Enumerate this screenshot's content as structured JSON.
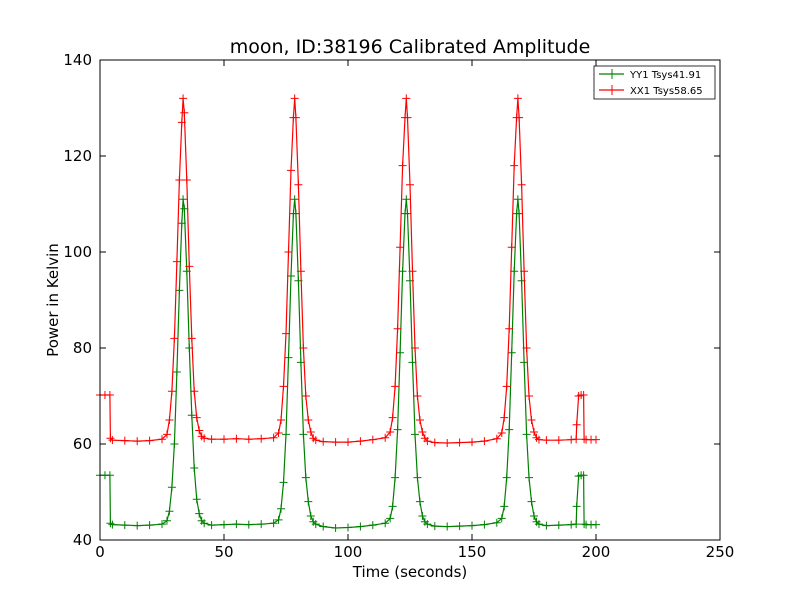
{
  "chart_data": {
    "type": "line",
    "title": "moon, ID:38196 Calibrated Amplitude",
    "xlabel": "Time (seconds)",
    "ylabel": "Power in Kelvin",
    "xlim": [
      0,
      250
    ],
    "ylim": [
      40,
      140
    ],
    "xticks": [
      0,
      50,
      100,
      150,
      200,
      250
    ],
    "yticks": [
      40,
      60,
      80,
      100,
      120,
      140
    ],
    "grid": false,
    "legend_position": "top-right",
    "marker": "+",
    "series": [
      {
        "name": "YY1 Tsys41.91",
        "color": "#008000",
        "x": [
          0,
          2,
          4,
          4.2,
          5,
          10,
          15,
          20,
          25,
          27,
          28,
          29,
          30,
          31,
          32,
          33,
          33.5,
          34,
          35,
          36,
          37,
          38,
          39,
          40,
          41,
          42,
          45,
          50,
          55,
          60,
          65,
          70,
          72,
          73,
          74,
          75,
          76,
          77,
          78,
          78.5,
          79,
          80,
          81,
          82,
          83,
          84,
          85,
          86,
          87,
          90,
          95,
          100,
          105,
          110,
          115,
          117,
          118,
          119,
          120,
          121,
          122,
          123,
          123.5,
          124,
          125,
          126,
          127,
          128,
          129,
          130,
          131,
          132,
          135,
          140,
          145,
          150,
          155,
          160,
          162,
          163,
          164,
          165,
          166,
          167,
          168,
          168.5,
          169,
          170,
          171,
          172,
          173,
          174,
          175,
          176,
          177,
          180,
          185,
          190,
          192,
          192.2,
          193,
          194,
          195,
          195.2,
          196,
          198,
          200
        ],
        "y": [
          53.5,
          53.5,
          53.5,
          43.5,
          43.2,
          43.1,
          43.0,
          43.1,
          43.3,
          44.0,
          46.0,
          51.0,
          60.0,
          75.0,
          92.0,
          106.0,
          111.0,
          109.0,
          96.0,
          80.0,
          66.0,
          55.0,
          48.5,
          45.5,
          44.0,
          43.5,
          43.1,
          43.2,
          43.3,
          43.2,
          43.3,
          43.5,
          44.2,
          46.5,
          52.0,
          62.0,
          78.0,
          95.0,
          108.0,
          111.0,
          108.0,
          94.0,
          77.0,
          62.0,
          53.0,
          48.0,
          45.0,
          43.8,
          43.3,
          42.8,
          42.5,
          42.6,
          42.8,
          43.1,
          43.5,
          44.5,
          47.0,
          53.0,
          63.0,
          79.0,
          96.0,
          108.0,
          111.0,
          108.0,
          94.0,
          77.0,
          62.0,
          53.0,
          48.0,
          45.0,
          43.8,
          43.3,
          42.9,
          42.8,
          42.9,
          43.0,
          43.2,
          43.6,
          44.5,
          47.0,
          53.0,
          63.0,
          79.0,
          96.0,
          108.0,
          111.0,
          108.0,
          94.0,
          77.0,
          62.0,
          53.0,
          48.0,
          45.0,
          43.8,
          43.3,
          43.0,
          43.1,
          43.2,
          43.3,
          47.0,
          53.3,
          53.5,
          53.5,
          43.3,
          43.2,
          43.2,
          43.2
        ]
      },
      {
        "name": "XX1 Tsys58.65",
        "color": "#ff0000",
        "x": [
          0,
          2,
          4,
          4.2,
          5,
          10,
          15,
          20,
          25,
          27,
          28,
          29,
          30,
          31,
          32,
          33,
          33.5,
          34,
          35,
          36,
          37,
          38,
          39,
          40,
          41,
          42,
          45,
          50,
          55,
          60,
          65,
          70,
          72,
          73,
          74,
          75,
          76,
          77,
          78,
          78.5,
          79,
          80,
          81,
          82,
          83,
          84,
          85,
          86,
          87,
          90,
          95,
          100,
          105,
          110,
          115,
          117,
          118,
          119,
          120,
          121,
          122,
          123,
          123.5,
          124,
          125,
          126,
          127,
          128,
          129,
          130,
          131,
          132,
          135,
          140,
          145,
          150,
          155,
          160,
          162,
          163,
          164,
          165,
          166,
          167,
          168,
          168.5,
          169,
          170,
          171,
          172,
          173,
          174,
          175,
          176,
          177,
          180,
          185,
          190,
          192,
          192.2,
          193,
          194,
          195,
          195.2,
          196,
          198,
          200
        ],
        "y": [
          70.2,
          70.2,
          70.2,
          61.2,
          60.8,
          60.7,
          60.6,
          60.7,
          61.0,
          62.0,
          65.0,
          71.0,
          82.0,
          98.0,
          115.0,
          127.0,
          132.0,
          129.0,
          115.0,
          97.0,
          82.0,
          71.0,
          65.5,
          62.8,
          61.6,
          61.2,
          61.0,
          61.0,
          61.1,
          61.0,
          61.1,
          61.3,
          62.3,
          65.0,
          72.0,
          83.0,
          100.0,
          117.0,
          128.0,
          132.0,
          128.0,
          114.0,
          96.0,
          80.0,
          70.0,
          65.0,
          62.5,
          61.2,
          60.8,
          60.5,
          60.4,
          60.4,
          60.6,
          60.9,
          61.3,
          62.5,
          65.5,
          72.0,
          84.0,
          101.0,
          118.0,
          128.0,
          132.0,
          128.0,
          114.0,
          96.0,
          80.0,
          70.0,
          65.0,
          62.5,
          61.2,
          60.6,
          60.3,
          60.2,
          60.3,
          60.4,
          60.6,
          61.1,
          62.3,
          65.5,
          72.0,
          84.0,
          101.0,
          118.0,
          128.0,
          132.0,
          128.0,
          114.0,
          96.0,
          80.0,
          70.0,
          65.0,
          62.5,
          61.3,
          60.9,
          60.8,
          60.8,
          60.9,
          61.0,
          64.0,
          70.0,
          70.2,
          70.2,
          61.0,
          60.9,
          60.9,
          60.9
        ]
      }
    ]
  }
}
